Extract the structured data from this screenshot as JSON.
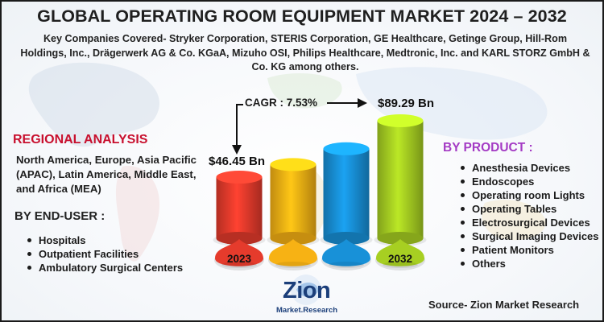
{
  "title": "GLOBAL OPERATING ROOM EQUIPMENT MARKET 2024 – 2032",
  "companies": "Key Companies Covered- Stryker Corporation, STERIS Corporation, GE Healthcare, Getinge Group, Hill-Rom Holdings, Inc., Drägerwerk AG & Co. KGaA, Mizuho OSI, Philips Healthcare, Medtronic, Inc. and KARL STORZ GmbH & Co. KG among others.",
  "cagr": "CAGR : 7.53%",
  "regional": {
    "title": "REGIONAL ANALYSIS",
    "text": "North America, Europe, Asia Pacific (APAC), Latin America, Middle East, and Africa (MEA)"
  },
  "end_user": {
    "title": "BY END-USER :",
    "items": [
      "Hospitals",
      "Outpatient Facilities",
      "Ambulatory Surgical Centers"
    ]
  },
  "by_product": {
    "title": "BY PRODUCT :",
    "items": [
      "Anesthesia Devices",
      "Endoscopes",
      "Operating room Lights",
      "Operating Tables",
      "Electrosurgical Devices",
      "Surgical Imaging Devices",
      "Patient Monitors",
      "Others"
    ]
  },
  "source": "Source- Zion Market Research",
  "logo": {
    "name": "Zion",
    "sub": "Market.Research"
  },
  "chart_data": {
    "type": "bar",
    "categories": [
      "2023",
      "",
      "",
      "2032"
    ],
    "values": [
      46.45,
      56,
      68,
      89.29
    ],
    "value_labels": [
      "$46.45 Bn",
      "",
      "",
      "$89.29 Bn"
    ],
    "colors": [
      "#e53b2c",
      "#f7b214",
      "#1891d8",
      "#a7cf22"
    ]
  }
}
